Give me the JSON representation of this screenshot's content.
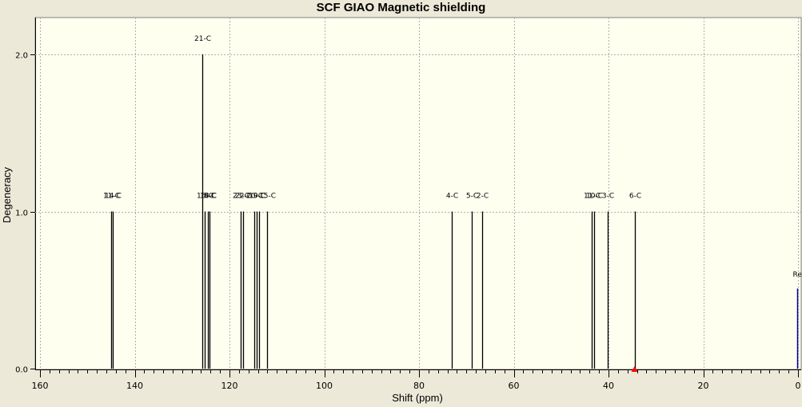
{
  "window": {
    "background": "#ece9d8"
  },
  "chart_data": {
    "type": "bar",
    "title": "SCF GIAO Magnetic shielding",
    "xlabel": "Shift (ppm)",
    "ylabel": "Degeneracy",
    "xlim": [
      160,
      0
    ],
    "ylim": [
      0,
      2.2
    ],
    "x_reversed": true,
    "grid": true,
    "xticks": [
      "160",
      "140",
      "120",
      "100",
      "80",
      "60",
      "40",
      "20",
      "0"
    ],
    "xtick_values": [
      160,
      140,
      120,
      100,
      80,
      60,
      40,
      20,
      0
    ],
    "yticks": [
      "0.0",
      "1.0",
      "2.0"
    ],
    "ytick_values": [
      0,
      1,
      2
    ],
    "plot_background": "#fffff0",
    "line_color": "#000000",
    "reference_color": "#00008b",
    "marker_color": "#ff0000",
    "peaks": [
      {
        "x": 145.0,
        "y": 1,
        "label": "11-C"
      },
      {
        "x": 144.7,
        "y": 1,
        "label": "14-C"
      },
      {
        "x": 125.7,
        "y": 2,
        "label": "21-C"
      },
      {
        "x": 125.2,
        "y": 1,
        "label": "16-C"
      },
      {
        "x": 124.6,
        "y": 1,
        "label": "18-C"
      },
      {
        "x": 124.3,
        "y": 1,
        "label": "8-C"
      },
      {
        "x": 117.7,
        "y": 1,
        "label": "23-C"
      },
      {
        "x": 117.1,
        "y": 1,
        "label": "22-C"
      },
      {
        "x": 114.8,
        "y": 1,
        "label": "20-C"
      },
      {
        "x": 114.2,
        "y": 1,
        "label": "19-C"
      },
      {
        "x": 113.8,
        "y": 1,
        "label": "9-C"
      },
      {
        "x": 112.1,
        "y": 1,
        "label": "15-C"
      },
      {
        "x": 73.0,
        "y": 1,
        "label": "4-C"
      },
      {
        "x": 68.8,
        "y": 1,
        "label": "5-C"
      },
      {
        "x": 66.6,
        "y": 1,
        "label": "2-C"
      },
      {
        "x": 43.5,
        "y": 1,
        "label": "11-C"
      },
      {
        "x": 43.0,
        "y": 1,
        "label": "10-C"
      },
      {
        "x": 40.1,
        "y": 1,
        "label": "3-C"
      },
      {
        "x": 34.5,
        "y": 1,
        "label": "6-C"
      }
    ],
    "reference": {
      "x": 0.2,
      "y": 0.5,
      "label": "Re"
    },
    "marker": {
      "x": 34.5,
      "y": 0
    }
  }
}
